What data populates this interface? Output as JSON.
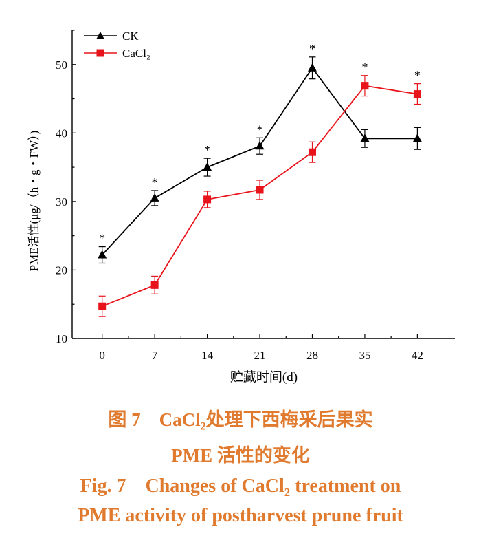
{
  "chart_data": {
    "type": "line",
    "title": "",
    "xlabel": "贮藏时间(d)",
    "ylabel": "PME活性(μg/（h・g・FW）)",
    "x": [
      0,
      7,
      14,
      21,
      28,
      35,
      42
    ],
    "x_ticks": [
      "0",
      "7",
      "14",
      "21",
      "28",
      "35",
      "42"
    ],
    "y_ticks": [
      "10",
      "20",
      "30",
      "40",
      "50"
    ],
    "xlim": [
      -4,
      47
    ],
    "ylim": [
      10,
      55
    ],
    "grid": false,
    "legend_position": "top-left",
    "series": [
      {
        "name": "CK",
        "values": [
          22.2,
          30.5,
          35.0,
          38.1,
          49.5,
          39.2,
          39.2
        ],
        "error": [
          1.2,
          1.1,
          1.3,
          1.2,
          1.6,
          1.3,
          1.6
        ],
        "color": "#000000",
        "marker": "triangle"
      },
      {
        "name": "CaCl₂",
        "values": [
          14.7,
          17.8,
          30.3,
          31.7,
          37.2,
          46.9,
          45.7
        ],
        "error": [
          1.5,
          1.3,
          1.2,
          1.4,
          1.5,
          1.5,
          1.5
        ],
        "color": "#e8141b",
        "marker": "square"
      }
    ],
    "significance": [
      "*",
      "*",
      "*",
      "*",
      "*",
      "*",
      "*"
    ]
  },
  "caption": {
    "cn_line1_pre": "图 7　CaCl",
    "cn_line1_sub": "2",
    "cn_line1_post": "处理下西梅采后果实",
    "cn_line2": "PME 活性的变化",
    "en_line1_pre": "Fig. 7　Changes of CaCl",
    "en_line1_sub": "2",
    "en_line1_post": " treatment on",
    "en_line2": "PME activity of postharvest prune fruit",
    "color": "#e07a2e"
  }
}
